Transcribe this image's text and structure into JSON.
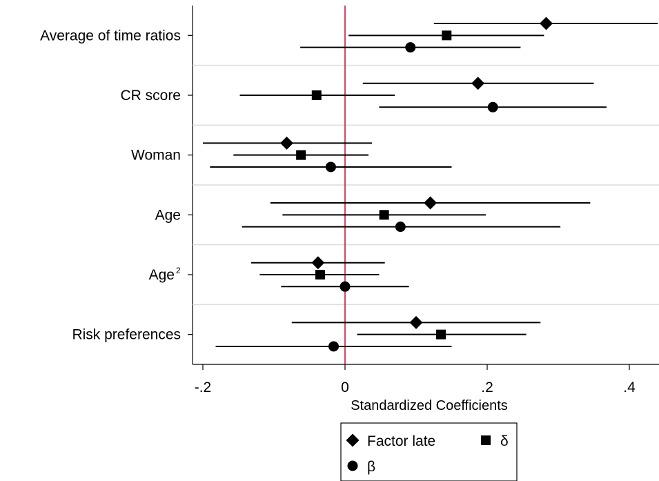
{
  "chart_data": {
    "type": "scatter",
    "subtype": "coefficient-plot",
    "xlabel": "Standardized Coefficients",
    "x_ticks": [
      -0.2,
      0,
      0.2,
      0.4
    ],
    "x_tick_labels": [
      "-.2",
      "0",
      ".2",
      ".4"
    ],
    "xlim": [
      -0.215,
      0.44
    ],
    "reference_line": {
      "x": 0,
      "color": "#c8193c"
    },
    "grid": "horizontal separators between groups",
    "legend": {
      "placement": "bottom-center",
      "entries": [
        {
          "label": "Factor late",
          "marker": "diamond"
        },
        {
          "label": "δ",
          "marker": "square"
        },
        {
          "label": "β",
          "marker": "circle"
        }
      ]
    },
    "categories": [
      {
        "label": "Average of time ratios",
        "superscript": ""
      },
      {
        "label": "CR score",
        "superscript": ""
      },
      {
        "label": "Woman",
        "superscript": ""
      },
      {
        "label": "Age",
        "superscript": ""
      },
      {
        "label": "Age",
        "superscript": "2"
      },
      {
        "label": "Risk preferences",
        "superscript": ""
      }
    ],
    "series": [
      {
        "name": "Factor late",
        "marker": "diamond",
        "estimates": [
          0.283,
          0.187,
          -0.082,
          0.12,
          -0.038,
          0.1
        ],
        "ci_low": [
          0.125,
          0.025,
          -0.2,
          -0.105,
          -0.132,
          -0.075
        ],
        "ci_high": [
          0.44,
          0.35,
          0.038,
          0.345,
          0.056,
          0.275
        ]
      },
      {
        "name": "δ",
        "marker": "square",
        "estimates": [
          0.143,
          -0.04,
          -0.062,
          0.055,
          -0.035,
          0.135
        ],
        "ci_low": [
          0.005,
          -0.148,
          -0.157,
          -0.088,
          -0.12,
          0.017
        ],
        "ci_high": [
          0.28,
          0.07,
          0.033,
          0.198,
          0.048,
          0.255
        ]
      },
      {
        "name": "β",
        "marker": "circle",
        "estimates": [
          0.092,
          0.208,
          -0.02,
          0.078,
          0.0,
          -0.016
        ],
        "ci_low": [
          -0.063,
          0.048,
          -0.19,
          -0.145,
          -0.09,
          -0.182
        ],
        "ci_high": [
          0.247,
          0.368,
          0.15,
          0.303,
          0.09,
          0.15
        ]
      }
    ]
  }
}
